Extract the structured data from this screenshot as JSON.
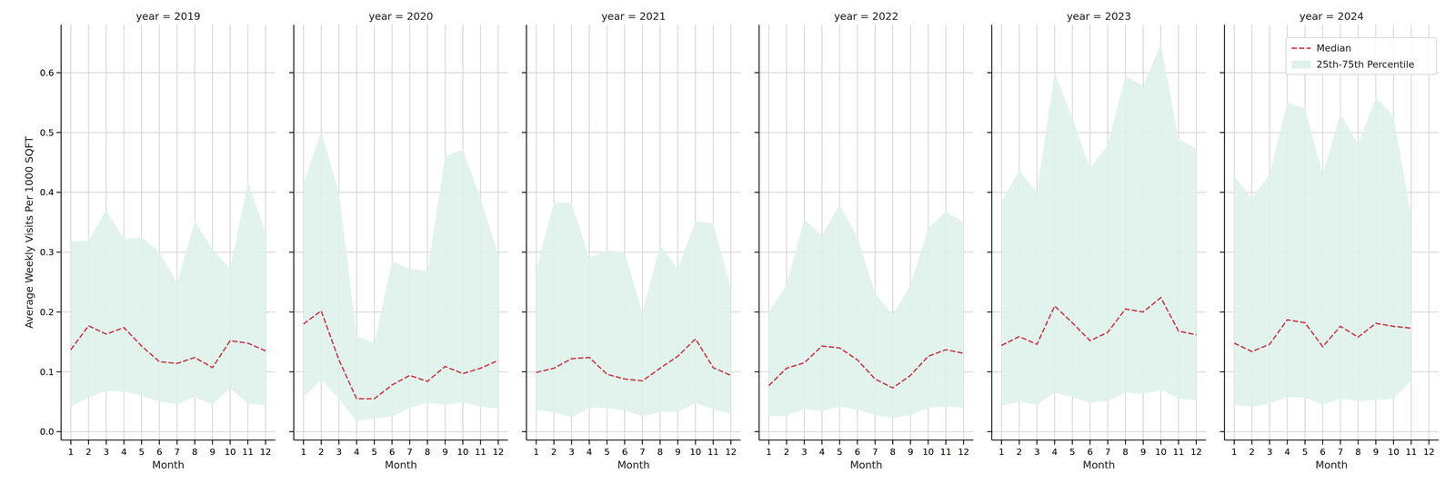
{
  "chart_data": [
    {
      "type": "line",
      "title": "year = 2019",
      "x_label": "Month",
      "y_label": "Average Weekly Visits Per 1000 SQFT",
      "grid": true,
      "x": [
        1,
        2,
        3,
        4,
        5,
        6,
        7,
        8,
        9,
        10,
        11,
        12
      ],
      "xlim": [
        0.45,
        12.55
      ],
      "xticks": [
        1,
        2,
        3,
        4,
        5,
        6,
        7,
        8,
        9,
        10,
        11,
        12
      ],
      "ylim": [
        -0.014,
        0.68
      ],
      "yticks": [
        {
          "value": 0,
          "label": "0.0"
        },
        0.1,
        0.2,
        0.3,
        0.4,
        0.5,
        0.6
      ],
      "series": [
        {
          "name": "Median",
          "type": "line",
          "line_style": "dashed",
          "color": "#c8414b",
          "values": [
            0.137,
            0.177,
            0.163,
            0.174,
            0.143,
            0.117,
            0.114,
            0.124,
            0.107,
            0.152,
            0.148,
            0.135
          ]
        },
        {
          "name": "25th-75th Percentile",
          "type": "band",
          "color": "#dff2ec",
          "lower": [
            0.042,
            0.057,
            0.068,
            0.067,
            0.06,
            0.05,
            0.046,
            0.058,
            0.045,
            0.073,
            0.047,
            0.044
          ],
          "upper": [
            0.318,
            0.319,
            0.37,
            0.322,
            0.325,
            0.3,
            0.248,
            0.352,
            0.305,
            0.272,
            0.418,
            0.332
          ]
        }
      ]
    },
    {
      "type": "line",
      "title": "year = 2020",
      "x_label": "Month",
      "grid": true,
      "tick_labels": "x",
      "x": [
        1,
        2,
        3,
        4,
        5,
        6,
        7,
        8,
        9,
        10,
        11,
        12
      ],
      "xlim": [
        0.45,
        12.55
      ],
      "xticks": [
        1,
        2,
        3,
        4,
        5,
        6,
        7,
        8,
        9,
        10,
        11,
        12
      ],
      "ylim": [
        -0.014,
        0.68
      ],
      "yticks": [
        {
          "value": 0,
          "label": "0.0"
        },
        0.1,
        0.2,
        0.3,
        0.4,
        0.5,
        0.6
      ],
      "series": [
        {
          "name": "Median",
          "type": "line",
          "line_style": "dashed",
          "color": "#c8414b",
          "values": [
            0.18,
            0.202,
            0.12,
            0.055,
            0.055,
            0.078,
            0.094,
            0.084,
            0.109,
            0.097,
            0.106,
            0.119
          ]
        },
        {
          "name": "25th-75th Percentile",
          "type": "band",
          "color": "#dff2ec",
          "lower": [
            0.058,
            0.087,
            0.055,
            0.018,
            0.022,
            0.025,
            0.04,
            0.048,
            0.045,
            0.049,
            0.042,
            0.038
          ],
          "upper": [
            0.415,
            0.502,
            0.4,
            0.16,
            0.148,
            0.285,
            0.272,
            0.268,
            0.46,
            0.472,
            0.39,
            0.295
          ]
        }
      ]
    },
    {
      "type": "line",
      "title": "year = 2021",
      "x_label": "Month",
      "grid": true,
      "tick_labels": "x",
      "x": [
        1,
        2,
        3,
        4,
        5,
        6,
        7,
        8,
        9,
        10,
        11,
        12
      ],
      "xlim": [
        0.45,
        12.55
      ],
      "xticks": [
        1,
        2,
        3,
        4,
        5,
        6,
        7,
        8,
        9,
        10,
        11,
        12
      ],
      "ylim": [
        -0.014,
        0.68
      ],
      "yticks": [
        {
          "value": 0,
          "label": "0.0"
        },
        0.1,
        0.2,
        0.3,
        0.4,
        0.5,
        0.6
      ],
      "series": [
        {
          "name": "Median",
          "type": "line",
          "line_style": "dashed",
          "color": "#c8414b",
          "values": [
            0.099,
            0.106,
            0.122,
            0.124,
            0.096,
            0.088,
            0.085,
            0.106,
            0.126,
            0.155,
            0.107,
            0.094
          ]
        },
        {
          "name": "25th-75th Percentile",
          "type": "band",
          "color": "#dff2ec",
          "lower": [
            0.036,
            0.033,
            0.024,
            0.04,
            0.04,
            0.035,
            0.026,
            0.033,
            0.033,
            0.048,
            0.037,
            0.03
          ],
          "upper": [
            0.27,
            0.383,
            0.382,
            0.29,
            0.303,
            0.3,
            0.198,
            0.312,
            0.272,
            0.352,
            0.348,
            0.24
          ]
        }
      ]
    },
    {
      "type": "line",
      "title": "year = 2022",
      "x_label": "Month",
      "grid": true,
      "tick_labels": "x",
      "x": [
        1,
        2,
        3,
        4,
        5,
        6,
        7,
        8,
        9,
        10,
        11,
        12
      ],
      "xlim": [
        0.45,
        12.55
      ],
      "xticks": [
        1,
        2,
        3,
        4,
        5,
        6,
        7,
        8,
        9,
        10,
        11,
        12
      ],
      "ylim": [
        -0.014,
        0.68
      ],
      "yticks": [
        {
          "value": 0,
          "label": "0.0"
        },
        0.1,
        0.2,
        0.3,
        0.4,
        0.5,
        0.6
      ],
      "series": [
        {
          "name": "Median",
          "type": "line",
          "line_style": "dashed",
          "color": "#c8414b",
          "values": [
            0.077,
            0.106,
            0.115,
            0.143,
            0.14,
            0.12,
            0.088,
            0.073,
            0.094,
            0.126,
            0.137,
            0.131
          ]
        },
        {
          "name": "25th-75th Percentile",
          "type": "band",
          "color": "#dff2ec",
          "lower": [
            0.025,
            0.027,
            0.038,
            0.034,
            0.042,
            0.037,
            0.028,
            0.022,
            0.028,
            0.04,
            0.042,
            0.04
          ],
          "upper": [
            0.2,
            0.245,
            0.355,
            0.328,
            0.38,
            0.325,
            0.232,
            0.195,
            0.245,
            0.34,
            0.368,
            0.35
          ]
        }
      ]
    },
    {
      "type": "line",
      "title": "year = 2023",
      "x_label": "Month",
      "grid": true,
      "tick_labels": "x",
      "x": [
        1,
        2,
        3,
        4,
        5,
        6,
        7,
        8,
        9,
        10,
        11,
        12
      ],
      "xlim": [
        0.45,
        12.55
      ],
      "xticks": [
        1,
        2,
        3,
        4,
        5,
        6,
        7,
        8,
        9,
        10,
        11,
        12
      ],
      "ylim": [
        -0.014,
        0.68
      ],
      "yticks": [
        {
          "value": 0,
          "label": "0.0"
        },
        0.1,
        0.2,
        0.3,
        0.4,
        0.5,
        0.6
      ],
      "series": [
        {
          "name": "Median",
          "type": "line",
          "line_style": "dashed",
          "color": "#c8414b",
          "values": [
            0.144,
            0.159,
            0.146,
            0.21,
            0.182,
            0.152,
            0.166,
            0.205,
            0.2,
            0.224,
            0.168,
            0.162
          ]
        },
        {
          "name": "25th-75th Percentile",
          "type": "band",
          "color": "#dff2ec",
          "lower": [
            0.043,
            0.05,
            0.045,
            0.065,
            0.058,
            0.048,
            0.052,
            0.065,
            0.063,
            0.07,
            0.055,
            0.052
          ],
          "upper": [
            0.385,
            0.437,
            0.4,
            0.6,
            0.525,
            0.44,
            0.48,
            0.595,
            0.578,
            0.648,
            0.49,
            0.472
          ]
        }
      ]
    },
    {
      "type": "line",
      "title": "year = 2024",
      "x_label": "Month",
      "grid": true,
      "tick_labels": "x",
      "legend": "upper right",
      "x": [
        1,
        2,
        3,
        4,
        5,
        6,
        7,
        8,
        9,
        10,
        11
      ],
      "xlim": [
        0.45,
        12.55
      ],
      "xticks": [
        1,
        2,
        3,
        4,
        5,
        6,
        7,
        8,
        9,
        10,
        11,
        12
      ],
      "ylim": [
        -0.014,
        0.68
      ],
      "yticks": [
        {
          "value": 0,
          "label": "0.0"
        },
        0.1,
        0.2,
        0.3,
        0.4,
        0.5,
        0.6
      ],
      "series": [
        {
          "name": "Median",
          "type": "line",
          "line_style": "dashed",
          "color": "#c8414b",
          "values": [
            0.148,
            0.134,
            0.146,
            0.187,
            0.182,
            0.142,
            0.176,
            0.158,
            0.181,
            0.176,
            0.173
          ]
        },
        {
          "name": "25th-75th Percentile",
          "type": "band",
          "color": "#dff2ec",
          "lower": [
            0.045,
            0.042,
            0.047,
            0.058,
            0.057,
            0.045,
            0.055,
            0.051,
            0.053,
            0.055,
            0.085
          ],
          "upper": [
            0.428,
            0.39,
            0.43,
            0.55,
            0.54,
            0.43,
            0.532,
            0.48,
            0.558,
            0.528,
            0.36
          ]
        }
      ]
    }
  ]
}
